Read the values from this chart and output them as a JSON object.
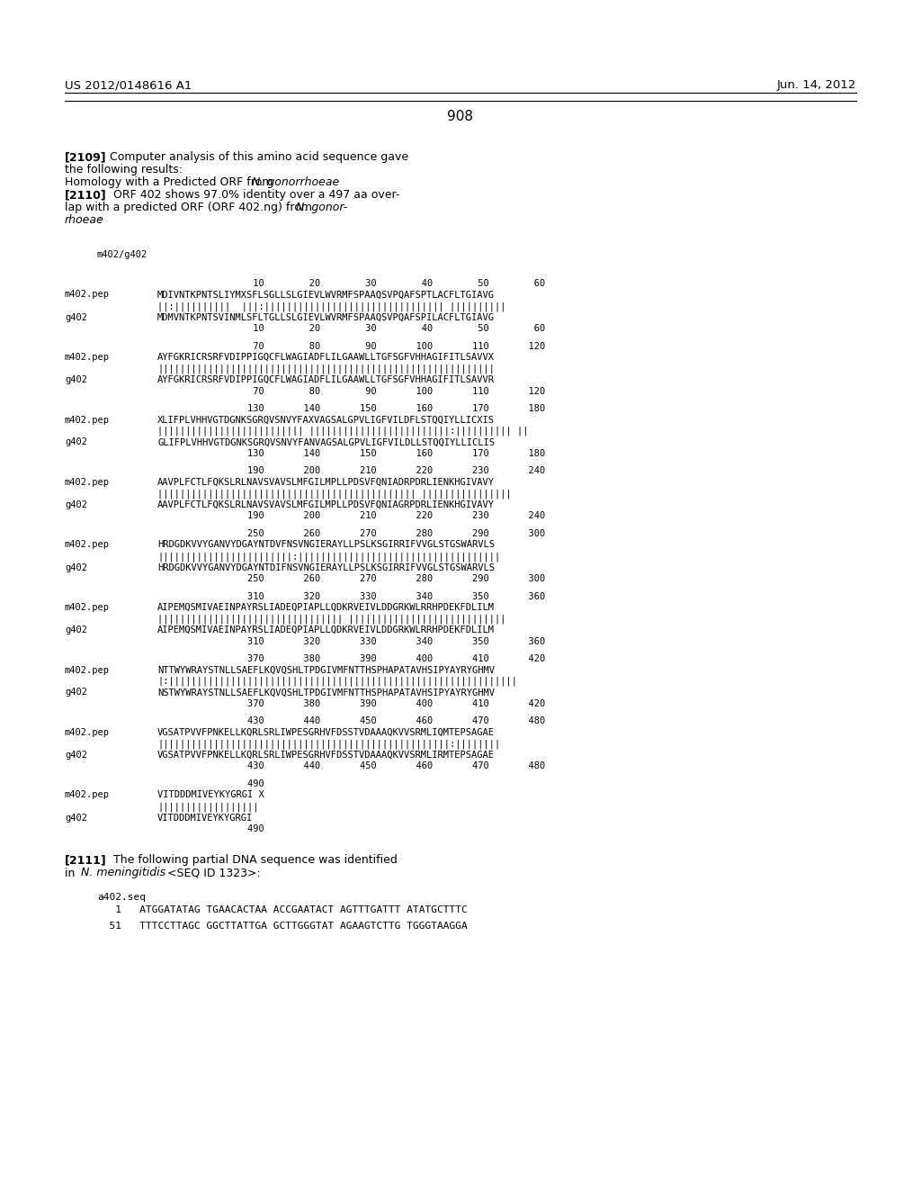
{
  "header_left": "US 2012/0148616 A1",
  "header_right": "Jun. 14, 2012",
  "page_number": "908",
  "background_color": "#ffffff",
  "alignment_blocks": [
    {
      "num_top": "         10        20        30        40        50        60",
      "seq1_label": "m402.pep",
      "seq1": "MDIVNTKPNTSLIYMXSFLSGLLSLGIEVLWVRMFSPAAQSVPQAFSPTLACFLTGIAVG",
      "match": "||:||||||||||  |||:|||||||||||||||||||||||||||||||| ||||||||||",
      "seq2_label": "g402",
      "seq2": "MDMVNTKPNTSVINMLSFLTGLLSLGIEVLWVRMFSPAAQSVPQAFSPILACFLTGIAVG",
      "num_bot": "         10        20        30        40        50        60"
    },
    {
      "num_top": "         70        80        90       100       110       120",
      "seq1_label": "m402.pep",
      "seq1": "AYFGKRICRSRFVDIPPIGQCFLWAGIADFLILGAAWLLTGFSGFVHHAGIFITLSAVVX",
      "match": "||||||||||||||||||||||||||||||||||||||||||||||||||||||||||||",
      "seq2_label": "g402",
      "seq2": "AYFGKRICRSRFVDIPPIGQCFLWAGIADFLILGAAWLLTGFSGFVHHAGIFITLSAVVR",
      "num_bot": "         70        80        90       100       110       120"
    },
    {
      "num_top": "        130       140       150       160       170       180",
      "seq1_label": "m402.pep",
      "seq1": "XLIFPLVHHVGTDGNKSGRQVSNVYFAXVAGSALGPVLIGFVILDFLSTQQIYLLICXIS",
      "match": "|||||||||||||||||||||||||| |||||||||||||||||||||||||:|||||||||| ||",
      "seq2_label": "g402",
      "seq2": "GLIFPLVHHVGTDGNKSGRQVSNVYFANVAGSALGPVLIGFVILDLLSTQQIYLLICLIS",
      "num_bot": "        130       140       150       160       170       180"
    },
    {
      "num_top": "        190       200       210       220       230       240",
      "seq1_label": "m402.pep",
      "seq1": "AAVPLFCTLFQKSLRLNAVSVAVSLMFGILMPLLPDSVFQNIADRPDRLIENKHGIVAVY",
      "match": "|||||||||||||||||||||||||||||||||||||||||||||| ||||||||||||||||",
      "seq2_label": "g402",
      "seq2": "AAVPLFCTLFQKSLRLNAVSVAVSLMFGILMPLLPDSVFQNIAGRPDRLIENKHGIVAVY",
      "num_bot": "        190       200       210       220       230       240"
    },
    {
      "num_top": "        250       260       270       280       290       300",
      "seq1_label": "m402.pep",
      "seq1": "HRDGDKVVYGANVYDGAYNTDVFNSVNGIERAYLLPSLKSGIRRIFVVGLSTGSWARVLS",
      "match": "||||||||||||||||||||||||:||||||||||||||||||||||||||||||||||||",
      "seq2_label": "g402",
      "seq2": "HRDGDKVVYGANVYDGAYNTDIFNSVNGIERAYLLPSLKSGIRRIFVVGLSTGSWARVLS",
      "num_bot": "        250       260       270       280       290       300"
    },
    {
      "num_top": "        310       320       330       340       350       360",
      "seq1_label": "m402.pep",
      "seq1": "AIPEMQSMIVAEINPAYRSLIADEQPIAPLLQDKRVEIVLDDGRKWLRRHPDEKFDLILM",
      "match": "||||||||||||||||||||||||||||||||| ||||||||||||||||||||||||||||",
      "seq2_label": "g402",
      "seq2": "AIPEMQSMIVAEINPAYRSLIADEQPIAPLLQDKRVEIVLDDGRKWLRRHPDEKFDLILM",
      "num_bot": "        310       320       330       340       350       360"
    },
    {
      "num_top": "        370       380       390       400       410       420",
      "seq1_label": "m402.pep",
      "seq1": "NTTWYWRAYSTNLLSAEFLKQVQSHLTPDGIVMFNTTHSPHAPATAVHSIPYAYRYGHMV",
      "match": "|:||||||||||||||||||||||||||||||||||||||||||||||||||||||||||||||",
      "seq2_label": "g402",
      "seq2": "NSTWYWRAYSTNLLSAEFLKQVQSHLTPDGIVMFNTTHSPHAPATAVHSIPYAYRYGHMV",
      "num_bot": "        370       380       390       400       410       420"
    },
    {
      "num_top": "        430       440       450       460       470       480",
      "seq1_label": "m402.pep",
      "seq1": "VGSATPVVFPNKELLKQRLSRLIWPESGRHVFDSSTVDAAAQKVVSRMLIQMTEPSAGAE",
      "match": "||||||||||||||||||||||||||||||||||||||||||||||||||||:||||||||",
      "seq2_label": "g402",
      "seq2": "VGSATPVVFPNKELLKQRLSRLIWPESGRHVFDSSTVDAAAQKVVSRMLIRMTEPSAGAE",
      "num_bot": "        430       440       450       460       470       480"
    },
    {
      "num_top": "        490",
      "seq1_label": "m402.pep",
      "seq1": "VITDDDMIVEYKYGRGI X",
      "match": "||||||||||||||||||",
      "seq2_label": "g402",
      "seq2": "VITDDDMIVEYKYGRGI",
      "num_bot": "        490"
    }
  ]
}
